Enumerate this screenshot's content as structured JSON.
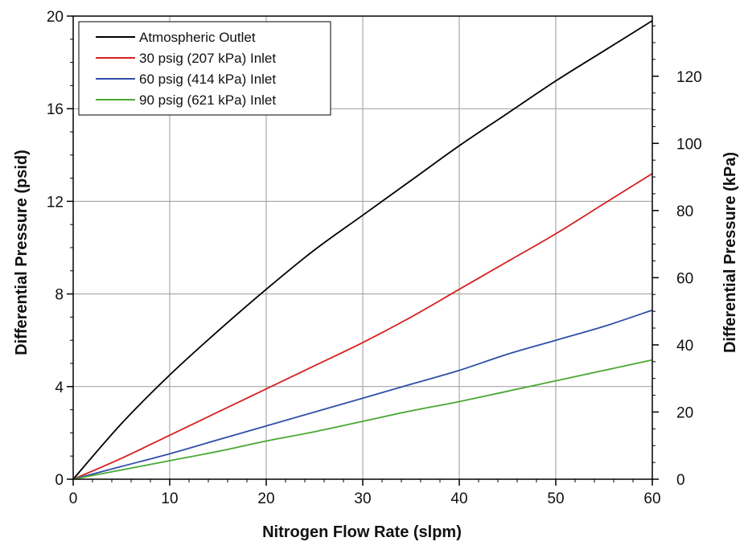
{
  "chart_data": {
    "type": "line",
    "title": "",
    "xlabel": "Nitrogen Flow Rate (slpm)",
    "ylabel": "Differential Pressure (psid)",
    "y2label": "Differential Pressure (kPa)",
    "xlim": [
      0,
      60
    ],
    "ylim": [
      0,
      20
    ],
    "y2lim": [
      0,
      137.9
    ],
    "x_ticks": [
      "0",
      "10",
      "20",
      "30",
      "40",
      "50",
      "60"
    ],
    "y_ticks": [
      "0",
      "4",
      "8",
      "12",
      "16",
      "20"
    ],
    "y2_ticks": [
      "0",
      "20",
      "40",
      "60",
      "80",
      "100",
      "120"
    ],
    "grid": true,
    "legend_position": "top-left",
    "x": [
      0,
      5,
      10,
      15,
      20,
      25,
      30,
      35,
      40,
      45,
      50,
      55,
      60
    ],
    "series": [
      {
        "name": "Atmospheric Outlet",
        "color": "#000000",
        "values": [
          0,
          2.4,
          4.5,
          6.4,
          8.2,
          9.9,
          11.4,
          12.9,
          14.4,
          15.8,
          17.2,
          18.5,
          19.8
        ]
      },
      {
        "name": "30 psig (207 kPa) Inlet",
        "color": "#d62020",
        "values": [
          0,
          0.9,
          1.9,
          2.9,
          3.9,
          4.9,
          5.9,
          7.0,
          8.2,
          9.4,
          10.6,
          11.9,
          13.2
        ]
      },
      {
        "name": "60 psig (414 kPa) Inlet",
        "color": "#2f4fa8",
        "values": [
          0,
          0.55,
          1.1,
          1.7,
          2.3,
          2.9,
          3.5,
          4.1,
          4.7,
          5.4,
          6.0,
          6.6,
          7.3
        ]
      },
      {
        "name": "90 psig (621 kPa) Inlet",
        "color": "#4aa832",
        "values": [
          0,
          0.4,
          0.8,
          1.2,
          1.65,
          2.05,
          2.5,
          2.95,
          3.35,
          3.8,
          4.25,
          4.7,
          5.15
        ]
      }
    ]
  }
}
